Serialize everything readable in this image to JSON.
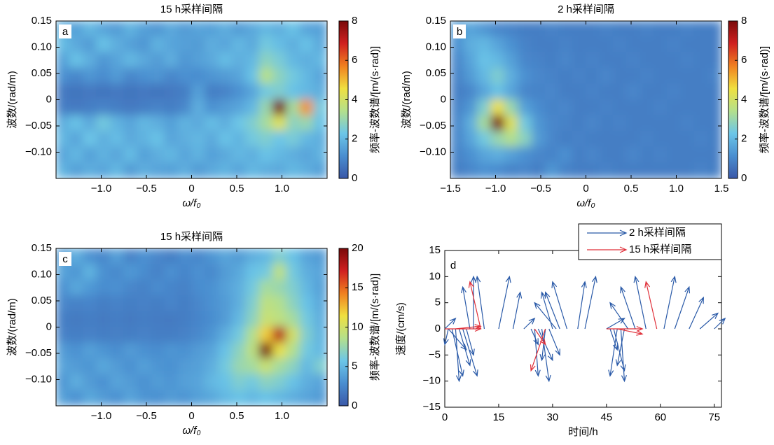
{
  "chart_data": [
    {
      "type": "heatmap",
      "title": "15 h采样间隔",
      "label": "a",
      "xlabel": "ω/f₀",
      "ylabel": "波数/(rad/m)",
      "zlabel": "频率-波数谱/[m/(s·rad)]",
      "xlim": [
        -1.5,
        1.5
      ],
      "ylim": [
        -0.15,
        0.15
      ],
      "zlim": [
        0,
        8
      ],
      "xticks": [
        {
          "value": -1.0,
          "label": "−1.0"
        },
        {
          "value": -0.5,
          "label": "−0.5"
        },
        0,
        0.5,
        {
          "value": 1.0,
          "label": "1.0"
        }
      ],
      "yticks": [
        0.15,
        {
          "value": 0.1,
          "label": "0.10"
        },
        0.05,
        0,
        {
          "value": -0.05,
          "label": "−0.05"
        },
        {
          "value": -0.1,
          "label": "−0.10"
        }
      ],
      "zticks": [
        0,
        2,
        4,
        6,
        8
      ],
      "colorscale": [
        "#3a58a8",
        "#4a8ed0",
        "#6cc6e8",
        "#b4e08c",
        "#f0e040",
        "#f08020",
        "#d02020",
        "#7a0a0a"
      ],
      "x": [
        -1.425,
        -1.275,
        -1.125,
        -0.975,
        -0.825,
        -0.675,
        -0.525,
        -0.375,
        -0.225,
        -0.075,
        0.075,
        0.225,
        0.375,
        0.525,
        0.675,
        0.825,
        0.975,
        1.125,
        1.275,
        1.425
      ],
      "y": [
        0.135,
        0.105,
        0.075,
        0.045,
        0.015,
        -0.015,
        -0.045,
        -0.075,
        -0.105,
        -0.135
      ],
      "z": [
        [
          1.8,
          1.5,
          2.0,
          1.6,
          1.4,
          1.9,
          1.5,
          1.3,
          1.7,
          1.4,
          1.6,
          1.5,
          1.8,
          1.4,
          1.7,
          2.0,
          1.8,
          2.2,
          1.6,
          1.5
        ],
        [
          2.1,
          1.7,
          1.4,
          2.2,
          1.8,
          1.5,
          1.3,
          1.9,
          1.6,
          1.5,
          1.4,
          1.8,
          1.6,
          2.0,
          1.7,
          2.4,
          2.1,
          1.8,
          2.2,
          1.7
        ],
        [
          1.5,
          2.2,
          1.8,
          1.3,
          1.6,
          2.0,
          1.7,
          1.4,
          1.8,
          1.3,
          1.5,
          1.7,
          2.1,
          1.8,
          2.0,
          2.8,
          2.5,
          2.0,
          1.8,
          2.0
        ],
        [
          1.2,
          1.0,
          1.3,
          1.1,
          1.4,
          1.0,
          1.2,
          1.3,
          1.0,
          1.2,
          1.1,
          1.3,
          1.4,
          1.6,
          2.2,
          3.5,
          2.8,
          2.4,
          2.0,
          1.6
        ],
        [
          0.7,
          0.6,
          0.7,
          0.6,
          0.7,
          0.6,
          0.7,
          0.6,
          0.7,
          0.8,
          1.5,
          0.8,
          0.9,
          1.2,
          1.6,
          2.4,
          2.6,
          2.2,
          2.0,
          1.8
        ],
        [
          0.8,
          0.7,
          0.8,
          0.9,
          0.8,
          0.7,
          0.8,
          0.9,
          0.8,
          1.0,
          1.8,
          1.2,
          1.4,
          1.6,
          2.0,
          3.0,
          8.0,
          3.2,
          5.5,
          2.4
        ],
        [
          1.8,
          2.2,
          1.7,
          2.4,
          1.9,
          1.6,
          2.0,
          1.8,
          1.5,
          1.9,
          1.7,
          2.1,
          1.8,
          2.3,
          2.6,
          3.2,
          4.2,
          2.8,
          3.0,
          2.2
        ],
        [
          2.0,
          1.6,
          2.3,
          1.8,
          2.1,
          1.7,
          1.9,
          2.2,
          1.6,
          1.8,
          2.0,
          1.7,
          2.2,
          1.9,
          2.4,
          2.6,
          2.3,
          2.5,
          2.0,
          1.8
        ],
        [
          1.6,
          2.0,
          1.5,
          1.9,
          1.6,
          2.1,
          1.5,
          1.8,
          2.0,
          1.6,
          1.9,
          1.5,
          1.7,
          2.0,
          1.8,
          2.2,
          2.0,
          1.8,
          1.6,
          1.9
        ],
        [
          1.9,
          1.5,
          1.8,
          1.6,
          2.0,
          1.4,
          1.8,
          1.6,
          1.5,
          1.8,
          1.4,
          1.7,
          1.9,
          1.6,
          2.0,
          1.8,
          1.7,
          2.0,
          1.8,
          1.5
        ]
      ]
    },
    {
      "type": "heatmap",
      "title": "2 h采样间隔",
      "label": "b",
      "xlabel": "ω/f₀",
      "ylabel": "波数/(rad/m)",
      "zlabel": "频率-波数谱/[m/(s·rad)]",
      "xlim": [
        -1.5,
        1.5
      ],
      "ylim": [
        -0.15,
        0.15
      ],
      "zlim": [
        0,
        8
      ],
      "xticks": [
        {
          "value": -1.5,
          "label": "−1.5"
        },
        {
          "value": -1.0,
          "label": "−1.0"
        },
        {
          "value": -0.5,
          "label": "−0.5"
        },
        0,
        0.5,
        {
          "value": 1.0,
          "label": "1.0"
        },
        1.5
      ],
      "yticks": [
        0.15,
        {
          "value": 0.1,
          "label": "0.10"
        },
        0.05,
        0,
        {
          "value": -0.05,
          "label": "−0.05"
        },
        {
          "value": -0.1,
          "label": "−0.10"
        }
      ],
      "zticks": [
        0,
        2,
        4,
        6,
        8
      ],
      "colorscale": [
        "#3a58a8",
        "#4a8ed0",
        "#6cc6e8",
        "#b4e08c",
        "#f0e040",
        "#f08020",
        "#d02020",
        "#7a0a0a"
      ],
      "x": [
        -1.425,
        -1.275,
        -1.125,
        -0.975,
        -0.825,
        -0.675,
        -0.525,
        -0.375,
        -0.225,
        -0.075,
        0.075,
        0.225,
        0.375,
        0.525,
        0.675,
        0.825,
        0.975,
        1.125,
        1.275,
        1.425
      ],
      "y": [
        0.135,
        0.105,
        0.075,
        0.045,
        0.015,
        -0.015,
        -0.045,
        -0.075,
        -0.105,
        -0.135
      ],
      "z": [
        [
          1.4,
          1.6,
          1.3,
          1.0,
          0.9,
          0.8,
          0.8,
          0.9,
          0.8,
          0.8,
          0.8,
          0.9,
          0.8,
          0.8,
          0.9,
          0.8,
          0.8,
          0.9,
          0.8,
          0.8
        ],
        [
          1.2,
          1.8,
          2.0,
          1.6,
          1.2,
          0.9,
          0.8,
          0.8,
          0.9,
          0.8,
          0.8,
          0.8,
          0.9,
          0.8,
          0.8,
          0.8,
          0.9,
          0.8,
          0.8,
          0.8
        ],
        [
          1.0,
          1.6,
          2.2,
          2.0,
          1.5,
          1.0,
          0.9,
          0.8,
          1.0,
          0.8,
          0.9,
          0.8,
          0.8,
          0.9,
          0.8,
          0.8,
          0.8,
          0.9,
          0.8,
          0.8
        ],
        [
          0.9,
          1.4,
          2.0,
          2.6,
          1.8,
          1.2,
          1.0,
          0.9,
          0.8,
          0.9,
          0.8,
          1.0,
          0.8,
          0.8,
          0.9,
          0.8,
          0.8,
          0.8,
          0.8,
          0.9
        ],
        [
          0.8,
          1.0,
          1.6,
          2.2,
          1.6,
          1.0,
          0.9,
          1.0,
          0.8,
          0.8,
          0.9,
          0.8,
          0.8,
          1.0,
          0.8,
          0.8,
          0.9,
          0.8,
          0.8,
          0.8
        ],
        [
          0.9,
          1.3,
          2.6,
          4.5,
          3.0,
          1.5,
          1.1,
          0.9,
          1.0,
          0.8,
          0.8,
          0.9,
          0.8,
          0.8,
          0.8,
          0.9,
          0.8,
          0.8,
          0.8,
          0.8
        ],
        [
          1.0,
          1.8,
          3.2,
          8.0,
          4.2,
          2.4,
          1.3,
          1.0,
          0.9,
          0.8,
          1.0,
          0.8,
          0.9,
          0.8,
          0.8,
          0.8,
          0.8,
          0.9,
          0.8,
          0.8
        ],
        [
          1.0,
          1.6,
          2.4,
          3.0,
          3.4,
          2.8,
          1.4,
          1.0,
          0.8,
          0.9,
          0.8,
          0.8,
          0.8,
          0.8,
          0.9,
          0.8,
          0.8,
          0.8,
          0.9,
          0.8
        ],
        [
          0.9,
          1.2,
          1.6,
          1.8,
          1.5,
          1.2,
          1.0,
          0.9,
          1.2,
          0.8,
          1.0,
          0.8,
          0.8,
          1.0,
          0.8,
          0.9,
          0.8,
          0.8,
          0.8,
          0.8
        ],
        [
          0.8,
          1.0,
          1.2,
          1.1,
          0.9,
          1.0,
          0.8,
          1.3,
          0.9,
          0.8,
          0.8,
          0.9,
          0.8,
          0.8,
          0.8,
          0.8,
          0.8,
          0.8,
          0.9,
          0.8
        ]
      ]
    },
    {
      "type": "heatmap",
      "title": "15 h采样间隔",
      "label": "c",
      "xlabel": "ω/f₀",
      "ylabel": "波数/(rad/m)",
      "zlabel": "频率-波数谱/[m/(s·rad)]",
      "xlim": [
        -1.5,
        1.5
      ],
      "ylim": [
        -0.15,
        0.15
      ],
      "zlim": [
        0,
        20
      ],
      "xticks": [
        {
          "value": -1.0,
          "label": "−1.0"
        },
        {
          "value": -0.5,
          "label": "−0.5"
        },
        0,
        0.5,
        {
          "value": 1.0,
          "label": "1.0"
        }
      ],
      "yticks": [
        0.15,
        {
          "value": 0.1,
          "label": "0.10"
        },
        0.05,
        0,
        {
          "value": -0.05,
          "label": "−0.05"
        },
        {
          "value": -0.1,
          "label": "−0.10"
        }
      ],
      "zticks": [
        0,
        5,
        10,
        15,
        20
      ],
      "colorscale": [
        "#3a58a8",
        "#4a8ed0",
        "#6cc6e8",
        "#b4e08c",
        "#f0e040",
        "#f08020",
        "#d02020",
        "#7a0a0a"
      ],
      "x": [
        -1.425,
        -1.275,
        -1.125,
        -0.975,
        -0.825,
        -0.675,
        -0.525,
        -0.375,
        -0.225,
        -0.075,
        0.075,
        0.225,
        0.375,
        0.525,
        0.675,
        0.825,
        0.975,
        1.125,
        1.275,
        1.425
      ],
      "y": [
        0.135,
        0.105,
        0.075,
        0.045,
        0.015,
        -0.015,
        -0.045,
        -0.075,
        -0.105,
        -0.135
      ],
      "z": [
        [
          3.5,
          4.5,
          3.0,
          2.5,
          3.8,
          2.2,
          3.0,
          2.5,
          2.0,
          2.8,
          2.5,
          3.2,
          4.0,
          3.5,
          4.5,
          5.0,
          6.5,
          5.5,
          4.0,
          3.5
        ],
        [
          4.0,
          3.2,
          4.8,
          3.0,
          2.6,
          3.4,
          2.8,
          2.2,
          3.0,
          2.4,
          3.0,
          2.6,
          3.5,
          4.2,
          5.5,
          6.0,
          9.0,
          6.0,
          4.5,
          4.0
        ],
        [
          3.0,
          4.2,
          3.4,
          2.8,
          3.0,
          2.5,
          2.2,
          2.8,
          2.4,
          2.2,
          2.8,
          3.0,
          3.8,
          4.5,
          6.0,
          8.0,
          7.5,
          6.5,
          5.0,
          3.8
        ],
        [
          2.5,
          2.2,
          2.4,
          2.0,
          2.3,
          2.0,
          2.2,
          2.0,
          2.4,
          2.0,
          2.5,
          3.0,
          3.5,
          4.5,
          6.5,
          9.0,
          8.5,
          7.0,
          5.5,
          4.2
        ],
        [
          2.0,
          1.8,
          2.0,
          1.8,
          2.0,
          1.8,
          2.0,
          1.9,
          1.8,
          2.0,
          2.4,
          2.8,
          3.5,
          5.0,
          7.0,
          9.5,
          9.0,
          8.0,
          6.0,
          4.5
        ],
        [
          2.2,
          2.0,
          2.2,
          2.0,
          2.1,
          2.0,
          2.2,
          2.0,
          2.0,
          2.2,
          2.6,
          3.2,
          4.5,
          6.0,
          8.5,
          12.0,
          18.0,
          10.0,
          6.5,
          4.8
        ],
        [
          3.5,
          3.0,
          3.8,
          3.2,
          2.8,
          3.5,
          3.0,
          2.8,
          3.2,
          3.0,
          3.5,
          4.0,
          5.5,
          7.0,
          9.0,
          20.0,
          11.0,
          8.5,
          6.0,
          5.0
        ],
        [
          4.0,
          3.5,
          3.2,
          4.2,
          3.5,
          3.0,
          3.8,
          3.2,
          3.0,
          3.5,
          3.8,
          4.5,
          6.0,
          7.5,
          8.0,
          9.5,
          8.0,
          7.0,
          5.0,
          6.5
        ],
        [
          3.2,
          4.5,
          3.5,
          3.0,
          4.0,
          3.5,
          3.0,
          3.6,
          3.2,
          3.8,
          4.0,
          5.0,
          5.5,
          6.5,
          6.0,
          7.0,
          6.5,
          5.5,
          4.5,
          4.0
        ],
        [
          3.8,
          3.0,
          4.2,
          3.5,
          3.0,
          4.0,
          3.2,
          3.0,
          3.5,
          3.2,
          3.8,
          4.2,
          5.0,
          5.5,
          5.0,
          5.5,
          5.0,
          4.5,
          4.0,
          3.5
        ]
      ]
    },
    {
      "type": "quiver",
      "label": "d",
      "xlabel": "时间/h",
      "ylabel": "速度/(cm/s)",
      "xlim": [
        0,
        77
      ],
      "ylim": [
        -15,
        15
      ],
      "xticks": [
        0,
        15,
        30,
        45,
        60,
        75
      ],
      "yticks": [
        {
          "value": -15,
          "label": "−15"
        },
        {
          "value": -10,
          "label": "−10"
        },
        {
          "value": -5,
          "label": "−5"
        },
        0,
        5,
        10,
        15
      ],
      "series": [
        {
          "name": "2 h采样间隔",
          "color": "#2a5aa8",
          "x": [
            0,
            1,
            1,
            2,
            3,
            4,
            5,
            6,
            7,
            8,
            11,
            15,
            19,
            22,
            24,
            25,
            26,
            27,
            28,
            29,
            30,
            31,
            32,
            34,
            37,
            39,
            45,
            46,
            47,
            48,
            49,
            50,
            51,
            53,
            56,
            61,
            64,
            68,
            71,
            75
          ],
          "u": [
            3,
            -1,
            5,
            3,
            1,
            3,
            4,
            2,
            -2,
            0,
            -2,
            3,
            2,
            3,
            2,
            1,
            4,
            2,
            -1,
            3,
            -3,
            -6,
            -4,
            -4,
            2,
            3,
            5,
            2,
            3,
            -2,
            1,
            -2,
            -5,
            -4,
            -3,
            3,
            4,
            4,
            5,
            3
          ],
          "v": [
            2,
            -3,
            -4,
            -9,
            -10,
            -7,
            -9,
            -5,
            8,
            10,
            10,
            10,
            7,
            2,
            -3,
            -9,
            -6,
            -10,
            -6,
            -5,
            7,
            5,
            7,
            9,
            9,
            10,
            2,
            -4,
            -8,
            -9,
            -10,
            -7,
            5,
            8,
            10,
            10,
            8,
            6,
            3,
            2
          ]
        },
        {
          "name": "15 h采样间隔",
          "color": "#e0303a",
          "x": [
            0,
            3,
            10,
            25,
            28,
            45,
            48,
            59
          ],
          "u": [
            10,
            7,
            -3,
            3,
            -4,
            10,
            7,
            -3
          ],
          "v": [
            0,
            0.5,
            9,
            -3,
            -8,
            0,
            -1,
            9
          ]
        }
      ]
    }
  ]
}
